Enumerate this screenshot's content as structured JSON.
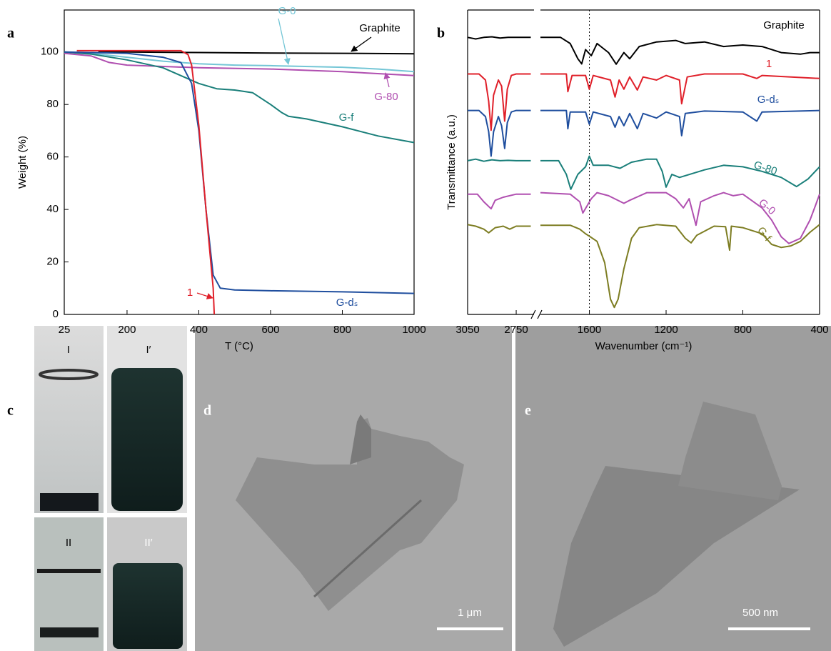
{
  "chart_data": [
    {
      "type": "line",
      "panel_label": "a",
      "x_label": "T (°C)",
      "y_label": "Weight (%)",
      "xlim": [
        25,
        1000
      ],
      "xticks": [
        25,
        200,
        400,
        600,
        800,
        1000
      ],
      "ylim": [
        0,
        116
      ],
      "yticks": [
        0,
        20,
        40,
        60,
        80,
        100
      ],
      "series": [
        {
          "name": "Graphite",
          "color": "#000000",
          "x": [
            120,
            200,
            400,
            600,
            800,
            1000
          ],
          "values": [
            100,
            100,
            99.8,
            99.6,
            99.5,
            99.3
          ]
        },
        {
          "name": "G-0",
          "color": "#74c6d6",
          "x": [
            25,
            100,
            200,
            300,
            400,
            500,
            600,
            800,
            900,
            1000
          ],
          "values": [
            100,
            99.5,
            98,
            96.5,
            95.5,
            95,
            94.8,
            94.2,
            93.5,
            92.5
          ]
        },
        {
          "name": "G-80",
          "color": "#b04fb0",
          "x": [
            25,
            100,
            150,
            200,
            300,
            400,
            600,
            800,
            1000
          ],
          "values": [
            99.5,
            98.5,
            96,
            95,
            94.5,
            94,
            93.5,
            92.5,
            91
          ]
        },
        {
          "name": "G-f",
          "color": "#1a7f7a",
          "x": [
            25,
            100,
            200,
            300,
            350,
            400,
            450,
            500,
            550,
            600,
            630,
            650,
            700,
            800,
            900,
            1000
          ],
          "values": [
            100,
            99.2,
            97,
            94,
            91,
            88,
            86,
            85.5,
            84.5,
            80,
            77,
            75.5,
            74.5,
            71.5,
            68,
            65.5
          ]
        },
        {
          "name": "G-dₛ",
          "color": "#1f4e9e",
          "x": [
            25,
            200,
            300,
            350,
            380,
            400,
            420,
            440,
            460,
            500,
            600,
            800,
            1000
          ],
          "values": [
            100,
            99.5,
            98,
            96,
            88,
            70,
            40,
            15,
            10,
            9.3,
            9,
            8.6,
            8
          ]
        },
        {
          "name": "1",
          "color": "#e0202a",
          "x": [
            60,
            200,
            350,
            370,
            380,
            400,
            420,
            440,
            443
          ],
          "values": [
            100.5,
            100.5,
            100.5,
            99,
            95,
            72,
            40,
            10,
            0
          ]
        }
      ]
    },
    {
      "type": "line",
      "panel_label": "b",
      "x_label": "Wavenumber (cm⁻¹)",
      "y_label": "Transmittance (a.u.)",
      "xlim": [
        3050,
        400
      ],
      "x_break": [
        2640,
        1855
      ],
      "xticks": [
        3050,
        2750,
        1600,
        1200,
        800,
        400
      ],
      "ylim": [
        0,
        100
      ],
      "vline": 1600,
      "series": [
        {
          "name": "Graphite",
          "color": "#000000",
          "x": [
            3050,
            3000,
            2950,
            2900,
            2850,
            2800,
            2750,
            2660,
            1855,
            1750,
            1700,
            1660,
            1640,
            1620,
            1590,
            1560,
            1500,
            1460,
            1420,
            1390,
            1340,
            1250,
            1150,
            1100,
            1000,
            900,
            800,
            700,
            600,
            500,
            450,
            400
          ],
          "values": [
            91,
            90.5,
            91,
            91.2,
            90.8,
            91,
            91,
            91,
            91,
            91,
            89,
            84,
            82.3,
            87,
            85,
            89,
            86,
            82.2,
            86,
            84,
            88,
            89.5,
            90,
            89,
            89.5,
            88,
            88.5,
            88,
            86,
            85.5,
            86,
            86
          ]
        },
        {
          "name": "1",
          "color": "#e0202a",
          "x": [
            3050,
            2980,
            2940,
            2920,
            2905,
            2890,
            2860,
            2840,
            2821,
            2805,
            2780,
            2750,
            2660,
            1855,
            1720,
            1712,
            1690,
            1620,
            1600,
            1580,
            1490,
            1466,
            1445,
            1420,
            1390,
            1350,
            1320,
            1250,
            1200,
            1130,
            1119,
            1090,
            1000,
            800,
            727,
            700,
            400
          ],
          "values": [
            79,
            79,
            77,
            70,
            60.5,
            72,
            77,
            75,
            63.5,
            74,
            78.5,
            79,
            79,
            79,
            79,
            73.2,
            78.5,
            78.5,
            74,
            78.5,
            77,
            71.4,
            77,
            74,
            78,
            73.7,
            78,
            77,
            78.5,
            77,
            69.2,
            78,
            79,
            79,
            77.5,
            78.5,
            77.5
          ]
        },
        {
          "name": "G-dₛ",
          "color": "#1f4e9e",
          "x": [
            3050,
            2980,
            2940,
            2920,
            2905,
            2890,
            2860,
            2840,
            2821,
            2805,
            2780,
            2750,
            2660,
            1855,
            1720,
            1712,
            1700,
            1620,
            1600,
            1580,
            1490,
            1466,
            1445,
            1420,
            1390,
            1350,
            1320,
            1250,
            1200,
            1130,
            1119,
            1100,
            1000,
            800,
            727,
            700,
            400
          ],
          "values": [
            67,
            67,
            65,
            60,
            52,
            60,
            65,
            62,
            54.5,
            63,
            66.5,
            67,
            67,
            67,
            67,
            61,
            66.5,
            66.5,
            62.5,
            66.5,
            65,
            61.5,
            65,
            62,
            66,
            61,
            66,
            64.5,
            66.5,
            65,
            58.7,
            66,
            66.8,
            66.5,
            63.5,
            66.5,
            67
          ]
        },
        {
          "name": "G-80",
          "color": "#1a7f7a",
          "x": [
            3050,
            3000,
            2950,
            2900,
            2850,
            2800,
            2750,
            2660,
            1855,
            1760,
            1720,
            1697,
            1660,
            1620,
            1600,
            1580,
            1500,
            1440,
            1380,
            1300,
            1250,
            1220,
            1200,
            1170,
            1130,
            1000,
            900,
            800,
            700,
            600,
            520,
            460,
            400
          ],
          "values": [
            50.5,
            51,
            50.3,
            50.8,
            50.5,
            50.6,
            50.5,
            50.5,
            50.5,
            50.5,
            46,
            41.1,
            46,
            48.5,
            52,
            49,
            49,
            48,
            50,
            51,
            51,
            47,
            41.8,
            46,
            45,
            47.5,
            49,
            48.5,
            47,
            45,
            42,
            44.5,
            48.5
          ]
        },
        {
          "name": "G-0",
          "color": "#b04fb0",
          "x": [
            3050,
            2990,
            2950,
            2905,
            2880,
            2830,
            2750,
            2660,
            1855,
            1700,
            1650,
            1634,
            1590,
            1560,
            1500,
            1420,
            1390,
            1300,
            1200,
            1150,
            1110,
            1080,
            1044,
            1020,
            950,
            900,
            850,
            800,
            700,
            650,
            600,
            560,
            500,
            450,
            420,
            400
          ],
          "values": [
            39.5,
            39.5,
            37,
            34.7,
            37.5,
            38.5,
            39.5,
            39.5,
            40,
            39.5,
            37,
            33.3,
            38,
            40,
            39,
            36.5,
            37.5,
            40,
            40,
            38,
            35,
            38,
            29.3,
            37,
            39,
            40,
            39,
            39.5,
            35,
            31,
            25.5,
            23.3,
            25,
            31,
            36,
            39.5
          ]
        },
        {
          "name": "G-f",
          "color": "#7d7d22",
          "x": [
            3050,
            3000,
            2950,
            2920,
            2880,
            2830,
            2790,
            2750,
            2660,
            1855,
            1700,
            1650,
            1620,
            1600,
            1560,
            1520,
            1490,
            1470,
            1450,
            1420,
            1380,
            1340,
            1250,
            1150,
            1100,
            1070,
            1040,
            950,
            890,
            869,
            860,
            800,
            700,
            650,
            600,
            550,
            500,
            450,
            400
          ],
          "values": [
            29.5,
            29,
            28,
            26.8,
            28.5,
            29,
            28,
            29,
            29,
            29.3,
            29.3,
            28,
            26.5,
            25.7,
            24,
            17,
            5,
            2.3,
            5,
            15,
            25,
            28.5,
            29.5,
            29,
            25,
            23.5,
            26,
            29,
            28.8,
            21.1,
            29,
            28.5,
            26.5,
            23,
            22,
            22.5,
            24,
            27,
            29.5
          ]
        }
      ]
    }
  ],
  "images": {
    "c": {
      "panel_label": "c",
      "labels": [
        "I",
        "I′",
        "II",
        "II′"
      ]
    },
    "d": {
      "panel_label": "d",
      "scale_bar": "1 μm"
    },
    "e": {
      "panel_label": "e",
      "scale_bar": "500 nm"
    }
  }
}
